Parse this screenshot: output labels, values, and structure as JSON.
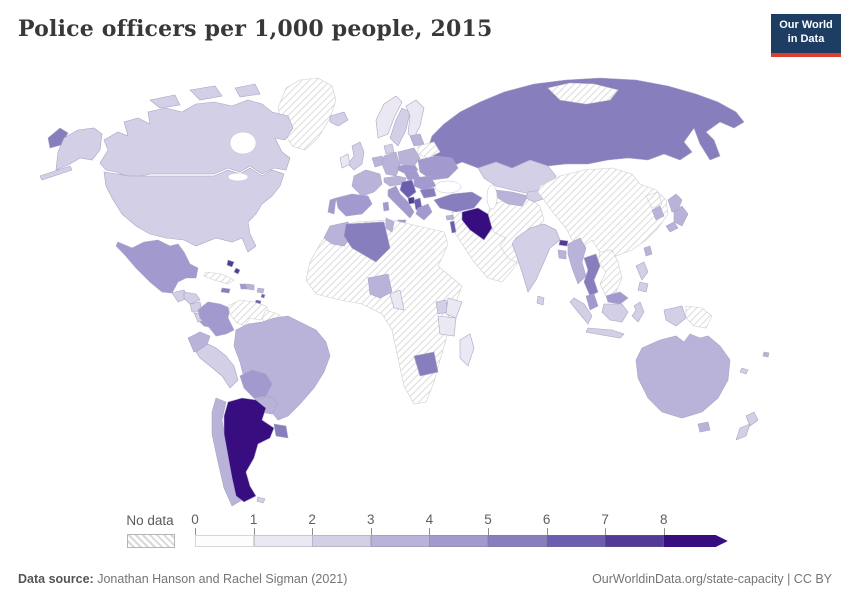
{
  "header": {
    "title": "Police officers per 1,000 people, 2015"
  },
  "logo": {
    "line1": "Our World",
    "line2": "in Data",
    "bg": "#1d3d63",
    "accent": "#dc3e32"
  },
  "legend": {
    "no_data_label": "No data",
    "tick_labels": [
      "0",
      "1",
      "2",
      "3",
      "4",
      "5",
      "6",
      "7",
      "8"
    ],
    "bucket_colors": [
      "#fdfdfe",
      "#ebe8f3",
      "#d2cfe7",
      "#b9b3da",
      "#a29ace",
      "#877ebe",
      "#6c5daf",
      "#533a96",
      "#380d80"
    ]
  },
  "footer": {
    "source_label": "Data source:",
    "source_value": "Jonathan Hanson and Rachel Sigman (2021)",
    "credit": "OurWorldinData.org/state-capacity | CC BY"
  },
  "chart_data": {
    "type": "choropleth_map",
    "title": "Police officers per 1,000 people, 2015",
    "unit": "police officers per 1,000 people",
    "year": "2015",
    "legend_position": "bottom",
    "color_scale": {
      "buckets": [
        "0-1",
        "1-2",
        "2-3",
        "3-4",
        "4-5",
        "5-6",
        "6-7",
        "7-8",
        "8+"
      ],
      "colors": [
        "#fdfdfe",
        "#ebe8f3",
        "#d2cfe7",
        "#b9b3da",
        "#a29ace",
        "#877ebe",
        "#6c5daf",
        "#533a96",
        "#380d80"
      ],
      "no_data_style": "white with gray diagonal hatching"
    },
    "entries": [
      {
        "id": "russia",
        "name": "Russia",
        "value": 5.3
      },
      {
        "id": "svalbard",
        "name": "Svalbard",
        "no_data": true
      },
      {
        "id": "greenland",
        "name": "Greenland",
        "no_data": true
      },
      {
        "id": "canada",
        "name": "Canada",
        "value": 2.2
      },
      {
        "id": "usa",
        "name": "United States",
        "value": 2.2
      },
      {
        "id": "mexico",
        "name": "Mexico",
        "value": 4.3
      },
      {
        "id": "guatemala",
        "name": "Guatemala",
        "value": 2.4
      },
      {
        "id": "honduras",
        "name": "Honduras",
        "value": 2.2
      },
      {
        "id": "nicaragua",
        "name": "Nicaragua",
        "value": 2.3
      },
      {
        "id": "costa_rica",
        "name": "Costa Rica",
        "value": 2.5
      },
      {
        "id": "panama",
        "name": "Panama",
        "value": 4.4
      },
      {
        "id": "cuba",
        "name": "Cuba",
        "no_data": true
      },
      {
        "id": "bahamas",
        "name": "Bahamas",
        "value": 7.4
      },
      {
        "id": "jamaica",
        "name": "Jamaica",
        "value": 5.3
      },
      {
        "id": "haiti",
        "name": "Haiti",
        "value": 4.4
      },
      {
        "id": "dominican_republic",
        "name": "Dominican Republic",
        "value": 3.4
      },
      {
        "id": "puerto_rico",
        "name": "Puerto Rico",
        "value": 3.4
      },
      {
        "id": "lesser_antilles",
        "name": "Lesser Antilles",
        "value": 6.5
      },
      {
        "id": "trinidad_tobago",
        "name": "Trinidad and Tobago",
        "value": 6.6
      },
      {
        "id": "colombia",
        "name": "Colombia",
        "value": 4.3
      },
      {
        "id": "venezuela",
        "name": "Venezuela",
        "no_data": true
      },
      {
        "id": "guyana_suriname",
        "name": "Guyana and Suriname",
        "no_data": true
      },
      {
        "id": "ecuador",
        "name": "Ecuador",
        "value": 3.4
      },
      {
        "id": "peru",
        "name": "Peru",
        "value": 2.3
      },
      {
        "id": "brazil",
        "name": "Brazil",
        "value": 3.2
      },
      {
        "id": "bolivia",
        "name": "Bolivia",
        "value": 4.2
      },
      {
        "id": "paraguay",
        "name": "Paraguay",
        "value": 3.3
      },
      {
        "id": "chile",
        "name": "Chile",
        "value": 3.3
      },
      {
        "id": "argentina",
        "name": "Argentina",
        "value": 8.5
      },
      {
        "id": "uruguay",
        "name": "Uruguay",
        "value": 5.6
      },
      {
        "id": "falkland_islands",
        "name": "Falkland Islands",
        "value": 2.2
      },
      {
        "id": "iceland",
        "name": "Iceland",
        "value": 2.2
      },
      {
        "id": "norway",
        "name": "Norway",
        "value": 1.6
      },
      {
        "id": "sweden",
        "name": "Sweden",
        "value": 2.1
      },
      {
        "id": "finland",
        "name": "Finland",
        "value": 1.6
      },
      {
        "id": "united_kingdom",
        "name": "United Kingdom",
        "value": 2.6
      },
      {
        "id": "ireland",
        "name": "Ireland",
        "value": 1.8
      },
      {
        "id": "denmark",
        "name": "Denmark",
        "value": 2.2
      },
      {
        "id": "belgium_netherlands",
        "name": "Belgium and Netherlands",
        "value": 3.4
      },
      {
        "id": "germany",
        "name": "Germany",
        "value": 3.4
      },
      {
        "id": "france",
        "name": "France",
        "value": 3.4
      },
      {
        "id": "spain",
        "name": "Spain",
        "value": 4.1
      },
      {
        "id": "portugal",
        "name": "Portugal",
        "value": 4.6
      },
      {
        "id": "switzerland_austria",
        "name": "Switzerland and Austria",
        "value": 3.4
      },
      {
        "id": "italy",
        "name": "Italy",
        "value": 4.5
      },
      {
        "id": "czechia_slovakia",
        "name": "Czechia and Slovakia",
        "value": 4.3
      },
      {
        "id": "poland",
        "name": "Poland",
        "value": 3.5
      },
      {
        "id": "baltic_states",
        "name": "Baltic states",
        "value": 3.4
      },
      {
        "id": "belarus",
        "name": "Belarus",
        "no_data": true
      },
      {
        "id": "ukraine",
        "name": "Ukraine",
        "value": 4.4
      },
      {
        "id": "hungary",
        "name": "Hungary",
        "value": 4.3
      },
      {
        "id": "romania",
        "name": "Romania",
        "value": 4.2
      },
      {
        "id": "bulgaria",
        "name": "Bulgaria",
        "value": 5.2
      },
      {
        "id": "croatia_serbia_bosnia",
        "name": "Croatia, Serbia and Bosnia",
        "value": 6.2
      },
      {
        "id": "montenegro",
        "name": "Montenegro",
        "value": 7.3
      },
      {
        "id": "albania_north_macedonia",
        "name": "Albania and North Macedonia",
        "value": 6.4
      },
      {
        "id": "greece",
        "name": "Greece",
        "value": 4.6
      },
      {
        "id": "africa_other",
        "name": "Africa (no data region)",
        "no_data": true
      },
      {
        "id": "morocco",
        "name": "Morocco",
        "value": 3.3
      },
      {
        "id": "algeria",
        "name": "Algeria",
        "value": 5.2
      },
      {
        "id": "tunisia",
        "name": "Tunisia",
        "value": 3.3
      },
      {
        "id": "nigeria",
        "name": "Nigeria",
        "value": 3.2
      },
      {
        "id": "cameroon",
        "name": "Cameroon",
        "value": 1.3
      },
      {
        "id": "uganda",
        "name": "Uganda",
        "value": 2.6
      },
      {
        "id": "kenya",
        "name": "Kenya",
        "value": 1.1
      },
      {
        "id": "tanzania",
        "name": "Tanzania",
        "value": 1.2
      },
      {
        "id": "botswana",
        "name": "Botswana",
        "value": 5.1
      },
      {
        "id": "madagascar",
        "name": "Madagascar",
        "value": 1.1
      },
      {
        "id": "middle_east",
        "name": "Arabian Peninsula and Levant",
        "no_data": true
      },
      {
        "id": "iran_afghanistan_pakistan",
        "name": "Iran, Afghanistan and Pakistan",
        "no_data": true
      },
      {
        "id": "turkey",
        "name": "Turkey",
        "value": 5.9
      },
      {
        "id": "iraq",
        "name": "Iraq",
        "value": 8.6
      },
      {
        "id": "israel_lebanon",
        "name": "Israel and Lebanon",
        "value": 6.6
      },
      {
        "id": "cyprus",
        "name": "Cyprus",
        "value": 3.4
      },
      {
        "id": "kazakhstan",
        "name": "Kazakhstan",
        "value": 2.4
      },
      {
        "id": "uzbekistan_turkmenistan",
        "name": "Uzbekistan and Turkmenistan",
        "value": 3.4
      },
      {
        "id": "kyrgyzstan_tajikistan",
        "name": "Kyrgyzstan and Tajikistan",
        "value": 2.4
      },
      {
        "id": "china_mongolia",
        "name": "China and Mongolia",
        "no_data": true
      },
      {
        "id": "north_korea",
        "name": "North Korea",
        "no_data": true
      },
      {
        "id": "vietnam_laos_cambodia",
        "name": "Vietnam, Laos and Cambodia",
        "no_data": true
      },
      {
        "id": "india",
        "name": "India",
        "value": 2.2
      },
      {
        "id": "bhutan",
        "name": "Bhutan",
        "value": 7.3
      },
      {
        "id": "bangladesh",
        "name": "Bangladesh",
        "value": 3.1
      },
      {
        "id": "sri_lanka",
        "name": "Sri Lanka",
        "value": 2.3
      },
      {
        "id": "myanmar",
        "name": "Myanmar",
        "value": 3.2
      },
      {
        "id": "thailand",
        "name": "Thailand",
        "value": 5.7
      },
      {
        "id": "malaysia",
        "name": "Malaysia",
        "value": 4.3
      },
      {
        "id": "indonesia",
        "name": "Indonesia",
        "value": 2.1
      },
      {
        "id": "papua_new_guinea",
        "name": "Papua New Guinea",
        "no_data": true
      },
      {
        "id": "philippines",
        "name": "Philippines",
        "value": 2.3
      },
      {
        "id": "taiwan",
        "name": "Taiwan",
        "value": 3.1
      },
      {
        "id": "south_korea",
        "name": "South Korea",
        "value": 3.1
      },
      {
        "id": "japan",
        "name": "Japan",
        "value": 3.0
      },
      {
        "id": "australia",
        "name": "Australia",
        "value": 3.2
      },
      {
        "id": "new_zealand",
        "name": "New Zealand",
        "value": 2.1
      },
      {
        "id": "fiji",
        "name": "Fiji",
        "value": 3.2
      },
      {
        "id": "new_caledonia",
        "name": "New Caledonia",
        "value": 2.4
      }
    ]
  }
}
